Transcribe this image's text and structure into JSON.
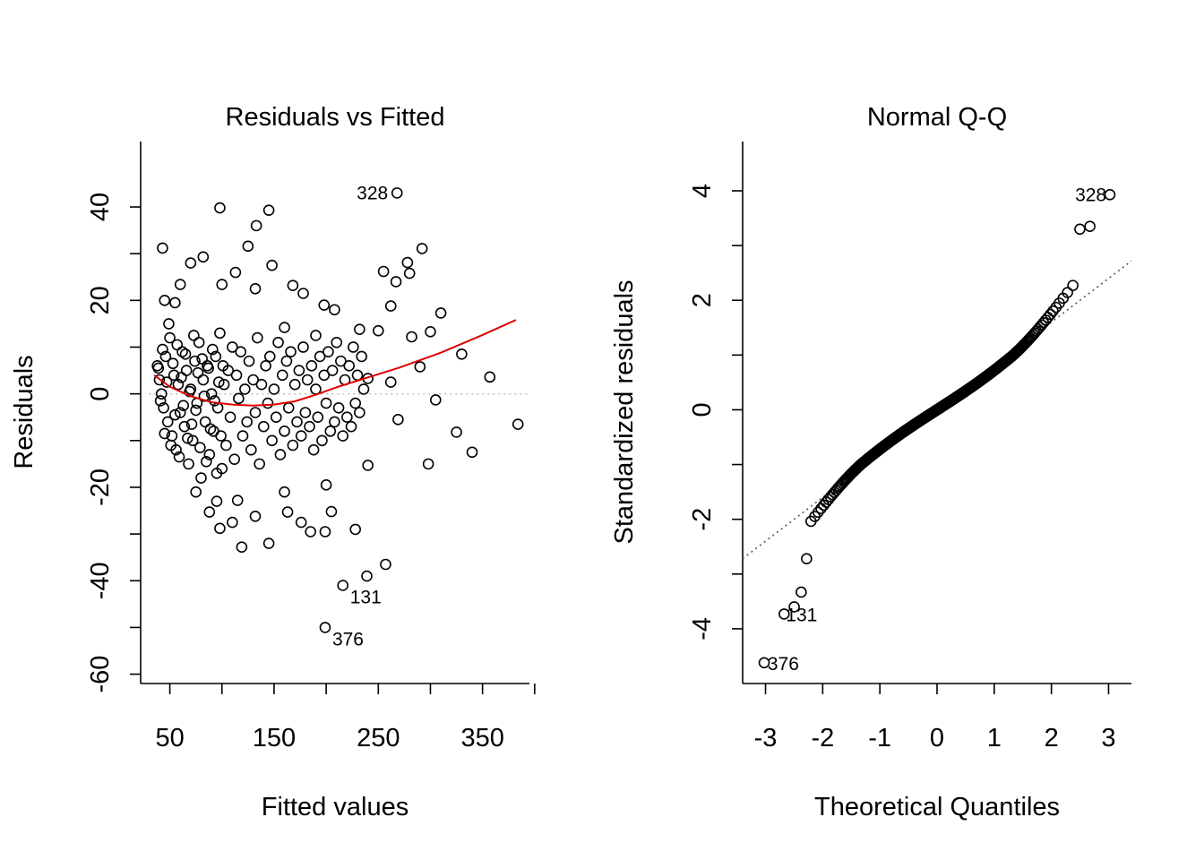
{
  "chart_data": [
    {
      "type": "scatter",
      "title": "Residuals vs Fitted",
      "xlabel": "Fitted values",
      "ylabel": "Residuals",
      "xlim": [
        22,
        395
      ],
      "ylim": [
        -62,
        54
      ],
      "xticks": [
        50,
        150,
        250,
        350
      ],
      "xtick_labels": [
        "50",
        "150",
        "250",
        "350"
      ],
      "yticks": [
        -60,
        -40,
        -20,
        0,
        20,
        40
      ],
      "ytick_labels": [
        "-60",
        "-40",
        "-20",
        "0",
        "20",
        "40"
      ],
      "reference_line": {
        "y": 0,
        "style": "dotted",
        "color": "#bfbfbf"
      },
      "smoother": {
        "color": "#e00000",
        "x": [
          35,
          50,
          70,
          90,
          110,
          130,
          150,
          170,
          190,
          210,
          230,
          250,
          270,
          290,
          310,
          330,
          350,
          382
        ],
        "y": [
          4,
          1.5,
          -0.5,
          -1.8,
          -2.3,
          -2.5,
          -2.3,
          -1.6,
          -0.2,
          1.4,
          2.8,
          4.2,
          5.6,
          7.2,
          8.8,
          10.7,
          12.6,
          15.8
        ]
      },
      "points": [
        {
          "x": 268,
          "y": 43,
          "label": "328"
        },
        {
          "x": 216,
          "y": -41,
          "label": "131"
        },
        {
          "x": 239,
          "y": -39
        },
        {
          "x": 257,
          "y": -36.5
        },
        {
          "x": 199,
          "y": -50,
          "label": "376"
        },
        {
          "x": 98,
          "y": 39.8
        },
        {
          "x": 145,
          "y": 39.3
        },
        {
          "x": 133,
          "y": 36
        },
        {
          "x": 43,
          "y": 31.2
        },
        {
          "x": 125,
          "y": 31.6
        },
        {
          "x": 292,
          "y": 31.1
        },
        {
          "x": 82,
          "y": 29.3
        },
        {
          "x": 148,
          "y": 27.5
        },
        {
          "x": 70,
          "y": 28
        },
        {
          "x": 278,
          "y": 28.1
        },
        {
          "x": 113,
          "y": 26
        },
        {
          "x": 255,
          "y": 26.2
        },
        {
          "x": 280,
          "y": 25.8
        },
        {
          "x": 60,
          "y": 23.4
        },
        {
          "x": 100,
          "y": 23.4
        },
        {
          "x": 168,
          "y": 23.2
        },
        {
          "x": 267,
          "y": 24
        },
        {
          "x": 132,
          "y": 22.5
        },
        {
          "x": 178,
          "y": 21.5
        },
        {
          "x": 45,
          "y": 20
        },
        {
          "x": 55,
          "y": 19.5
        },
        {
          "x": 198,
          "y": 19
        },
        {
          "x": 262,
          "y": 18.8
        },
        {
          "x": 208,
          "y": 18
        },
        {
          "x": 310,
          "y": 17.3
        },
        {
          "x": 250,
          "y": 13.5
        },
        {
          "x": 160,
          "y": 14.2
        },
        {
          "x": 232,
          "y": 13.8
        },
        {
          "x": 282,
          "y": 12.2
        },
        {
          "x": 300,
          "y": 13.3
        },
        {
          "x": 190,
          "y": 12.5
        },
        {
          "x": 330,
          "y": 8.5
        },
        {
          "x": 290,
          "y": 5.8
        },
        {
          "x": 357,
          "y": 3.6
        },
        {
          "x": 262,
          "y": 2.5
        },
        {
          "x": 240,
          "y": 3.3
        },
        {
          "x": 305,
          "y": -1.3
        },
        {
          "x": 269,
          "y": -5.5
        },
        {
          "x": 384,
          "y": -6.5
        },
        {
          "x": 325,
          "y": -8.2
        },
        {
          "x": 340,
          "y": -12.5
        },
        {
          "x": 298,
          "y": -15
        },
        {
          "x": 240,
          "y": -15.3
        },
        {
          "x": 75,
          "y": -21
        },
        {
          "x": 95,
          "y": -23
        },
        {
          "x": 115,
          "y": -22.8
        },
        {
          "x": 160,
          "y": -21
        },
        {
          "x": 200,
          "y": -19.5
        },
        {
          "x": 88,
          "y": -25.3
        },
        {
          "x": 132,
          "y": -26.2
        },
        {
          "x": 163,
          "y": -25.3
        },
        {
          "x": 176,
          "y": -27.5
        },
        {
          "x": 205,
          "y": -25.2
        },
        {
          "x": 98,
          "y": -28.8
        },
        {
          "x": 110,
          "y": -27.5
        },
        {
          "x": 185,
          "y": -29.5
        },
        {
          "x": 199,
          "y": -29.5
        },
        {
          "x": 228,
          "y": -29
        },
        {
          "x": 119,
          "y": -32.8
        },
        {
          "x": 145,
          "y": -32
        },
        {
          "x": 38,
          "y": 6
        },
        {
          "x": 40,
          "y": 3
        },
        {
          "x": 42,
          "y": 0
        },
        {
          "x": 44,
          "y": -3
        },
        {
          "x": 46,
          "y": 8
        },
        {
          "x": 48,
          "y": -6
        },
        {
          "x": 50,
          "y": 12
        },
        {
          "x": 52,
          "y": -9
        },
        {
          "x": 54,
          "y": 4
        },
        {
          "x": 56,
          "y": -12
        },
        {
          "x": 58,
          "y": 2
        },
        {
          "x": 60,
          "y": -4
        },
        {
          "x": 62,
          "y": 9
        },
        {
          "x": 64,
          "y": -7
        },
        {
          "x": 66,
          "y": 5
        },
        {
          "x": 68,
          "y": -15
        },
        {
          "x": 70,
          "y": 1
        },
        {
          "x": 72,
          "y": -10
        },
        {
          "x": 74,
          "y": 7
        },
        {
          "x": 76,
          "y": -2
        },
        {
          "x": 78,
          "y": 11
        },
        {
          "x": 80,
          "y": -18
        },
        {
          "x": 82,
          "y": 3
        },
        {
          "x": 84,
          "y": -6
        },
        {
          "x": 86,
          "y": 6
        },
        {
          "x": 88,
          "y": -13
        },
        {
          "x": 90,
          "y": 0
        },
        {
          "x": 92,
          "y": -8
        },
        {
          "x": 94,
          "y": 8
        },
        {
          "x": 96,
          "y": -3
        },
        {
          "x": 98,
          "y": 13
        },
        {
          "x": 100,
          "y": -16
        },
        {
          "x": 102,
          "y": 2
        },
        {
          "x": 104,
          "y": -11
        },
        {
          "x": 106,
          "y": 5
        },
        {
          "x": 108,
          "y": -5
        },
        {
          "x": 110,
          "y": 10
        },
        {
          "x": 112,
          "y": -14
        },
        {
          "x": 114,
          "y": 4
        },
        {
          "x": 116,
          "y": -1
        },
        {
          "x": 118,
          "y": 9
        },
        {
          "x": 120,
          "y": -9
        },
        {
          "x": 122,
          "y": 1
        },
        {
          "x": 124,
          "y": -6
        },
        {
          "x": 126,
          "y": 7
        },
        {
          "x": 128,
          "y": -12
        },
        {
          "x": 130,
          "y": 3
        },
        {
          "x": 132,
          "y": -4
        },
        {
          "x": 134,
          "y": 12
        },
        {
          "x": 136,
          "y": -15
        },
        {
          "x": 138,
          "y": 2
        },
        {
          "x": 140,
          "y": -7
        },
        {
          "x": 142,
          "y": 6
        },
        {
          "x": 144,
          "y": -2
        },
        {
          "x": 146,
          "y": 8
        },
        {
          "x": 148,
          "y": -10
        },
        {
          "x": 150,
          "y": 1
        },
        {
          "x": 152,
          "y": -5
        },
        {
          "x": 154,
          "y": 11
        },
        {
          "x": 156,
          "y": -13
        },
        {
          "x": 158,
          "y": 4
        },
        {
          "x": 160,
          "y": -8
        },
        {
          "x": 162,
          "y": 7
        },
        {
          "x": 164,
          "y": -3
        },
        {
          "x": 166,
          "y": 9
        },
        {
          "x": 168,
          "y": -11
        },
        {
          "x": 170,
          "y": 2
        },
        {
          "x": 172,
          "y": -6
        },
        {
          "x": 174,
          "y": 5
        },
        {
          "x": 176,
          "y": -9
        },
        {
          "x": 178,
          "y": 10
        },
        {
          "x": 180,
          "y": -4
        },
        {
          "x": 182,
          "y": 3
        },
        {
          "x": 184,
          "y": -7
        },
        {
          "x": 186,
          "y": 6
        },
        {
          "x": 188,
          "y": -12
        },
        {
          "x": 190,
          "y": 1
        },
        {
          "x": 192,
          "y": -5
        },
        {
          "x": 194,
          "y": 8
        },
        {
          "x": 196,
          "y": -10
        },
        {
          "x": 198,
          "y": 4
        },
        {
          "x": 200,
          "y": -2
        },
        {
          "x": 202,
          "y": 9
        },
        {
          "x": 204,
          "y": -8
        },
        {
          "x": 206,
          "y": 5
        },
        {
          "x": 208,
          "y": -6
        },
        {
          "x": 210,
          "y": 11
        },
        {
          "x": 212,
          "y": -3
        },
        {
          "x": 214,
          "y": 7
        },
        {
          "x": 216,
          "y": -9
        },
        {
          "x": 218,
          "y": 3
        },
        {
          "x": 220,
          "y": -5
        },
        {
          "x": 222,
          "y": 6
        },
        {
          "x": 224,
          "y": -7
        },
        {
          "x": 226,
          "y": 10
        },
        {
          "x": 228,
          "y": -2
        },
        {
          "x": 230,
          "y": 4
        },
        {
          "x": 232,
          "y": -4
        },
        {
          "x": 234,
          "y": 8
        },
        {
          "x": 236,
          "y": 1
        },
        {
          "x": 39,
          "y": 5.5
        },
        {
          "x": 41,
          "y": -1.5
        },
        {
          "x": 43,
          "y": 9.5
        },
        {
          "x": 45,
          "y": -8.5
        },
        {
          "x": 47,
          "y": 2.5
        },
        {
          "x": 49,
          "y": 15
        },
        {
          "x": 51,
          "y": -11
        },
        {
          "x": 53,
          "y": 6.5
        },
        {
          "x": 55,
          "y": -4.5
        },
        {
          "x": 57,
          "y": 10.5
        },
        {
          "x": 59,
          "y": -13.5
        },
        {
          "x": 61,
          "y": 3.5
        },
        {
          "x": 63,
          "y": -2.5
        },
        {
          "x": 65,
          "y": 8.5
        },
        {
          "x": 67,
          "y": -9.5
        },
        {
          "x": 69,
          "y": 0.5
        },
        {
          "x": 71,
          "y": -6.5
        },
        {
          "x": 73,
          "y": 12.5
        },
        {
          "x": 75,
          "y": -3.5
        },
        {
          "x": 77,
          "y": 4.5
        },
        {
          "x": 79,
          "y": -11.5
        },
        {
          "x": 81,
          "y": 7.5
        },
        {
          "x": 83,
          "y": -0.5
        },
        {
          "x": 85,
          "y": -14.5
        },
        {
          "x": 87,
          "y": 5.5
        },
        {
          "x": 89,
          "y": -7.5
        },
        {
          "x": 91,
          "y": 9.5
        },
        {
          "x": 93,
          "y": -1.5
        },
        {
          "x": 95,
          "y": -17
        },
        {
          "x": 97,
          "y": 2.5
        },
        {
          "x": 99,
          "y": -9
        },
        {
          "x": 101,
          "y": 6
        }
      ]
    },
    {
      "type": "scatter",
      "title": "Normal Q-Q",
      "xlabel": "Theoretical Quantiles",
      "ylabel": "Standardized residuals",
      "xlim": [
        -3.4,
        3.4
      ],
      "ylim": [
        -5,
        4.9
      ],
      "xticks": [
        -3,
        -2,
        -1,
        0,
        1,
        2,
        3
      ],
      "xtick_labels": [
        "-3",
        "-2",
        "-1",
        "0",
        "1",
        "2",
        "3"
      ],
      "yticks": [
        -4,
        -2,
        0,
        2,
        4
      ],
      "ytick_labels": [
        "-4",
        "-2",
        "0",
        "2",
        "4"
      ],
      "reference_line": {
        "slope": 0.8,
        "intercept": 0,
        "style": "dotted",
        "color": "#555555"
      },
      "n_points": 400,
      "labeled_points": [
        {
          "x": 3.12,
          "y": 3.93,
          "label": "328"
        },
        {
          "x": -2.8,
          "y": -3.73,
          "label": "131"
        },
        {
          "x": -3.12,
          "y": -4.62,
          "label": "376"
        }
      ]
    }
  ]
}
